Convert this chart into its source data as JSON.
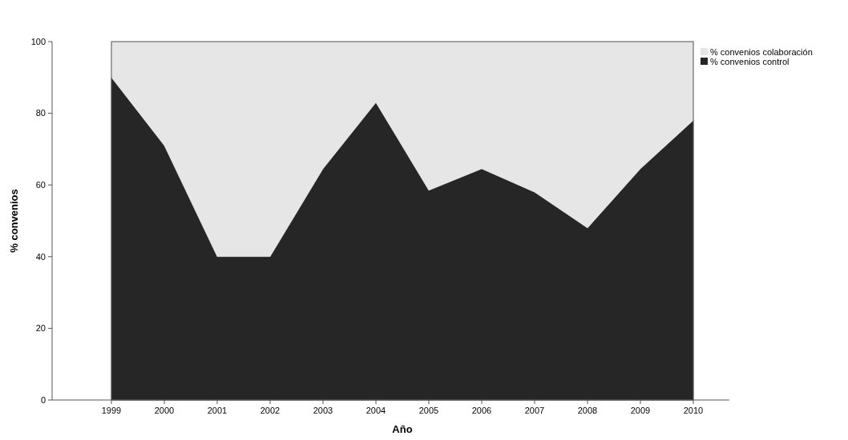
{
  "chart_data": {
    "type": "area",
    "stacked": true,
    "xlabel": "Año",
    "ylabel": "% convenios",
    "categories": [
      "1999",
      "2000",
      "2001",
      "2002",
      "2003",
      "2004",
      "2005",
      "2006",
      "2007",
      "2008",
      "2009",
      "2010"
    ],
    "series": [
      {
        "name": "% convenios control",
        "color": "#262626",
        "values": [
          90,
          71,
          40,
          40,
          64.5,
          83,
          58.5,
          64.5,
          58,
          48,
          64.5,
          78
        ]
      },
      {
        "name": "% convenios colaboración",
        "color": "#e6e6e6",
        "values": [
          10,
          29,
          60,
          60,
          35.5,
          17,
          41.5,
          35.5,
          42,
          52,
          35.5,
          22
        ]
      }
    ],
    "ylim": [
      0,
      100
    ],
    "yticks": [
      0,
      20,
      40,
      60,
      80,
      100
    ],
    "legend": "top right"
  }
}
